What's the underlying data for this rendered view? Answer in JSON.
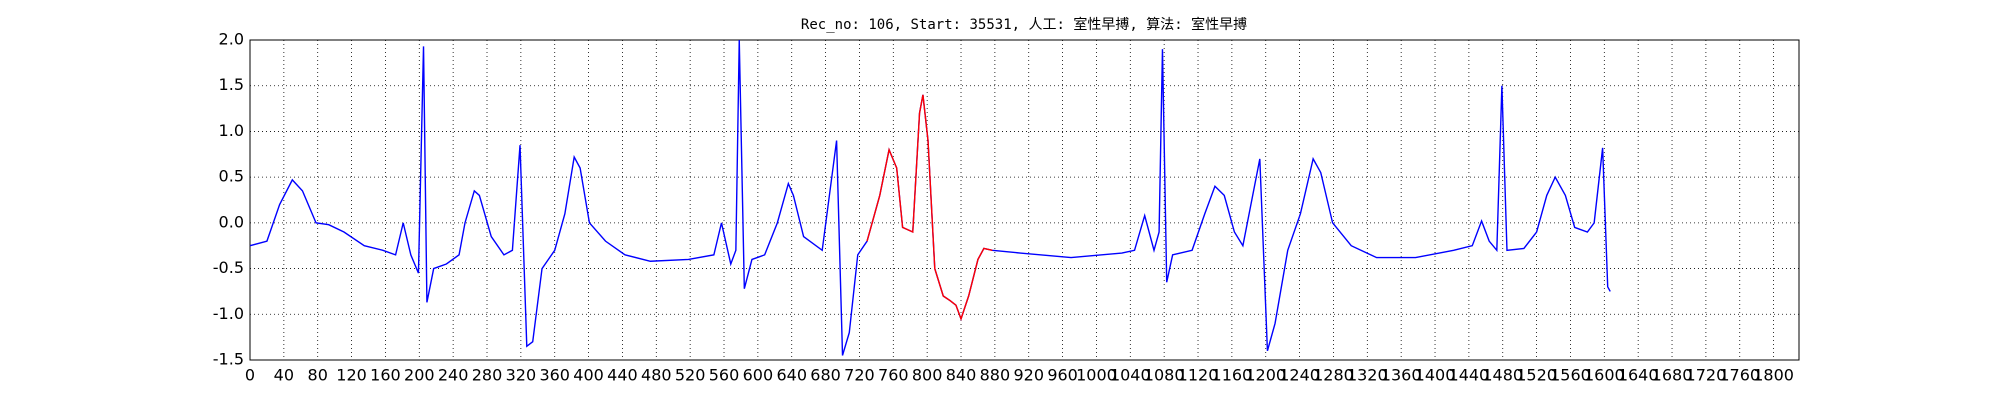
{
  "chart_data": {
    "type": "line",
    "title": "Rec_no: 106, Start: 35531, 人工: 室性早搏, 算法: 室性早搏",
    "series": [
      {
        "color": "#0000ff",
        "x": [
          0,
          20,
          35,
          50,
          62,
          78,
          93,
          111,
          135,
          157,
          172,
          181,
          190,
          199,
          205,
          209,
          217,
          232,
          247,
          254,
          265,
          271,
          285,
          300,
          310,
          319,
          327,
          334,
          345,
          360,
          372,
          383,
          390,
          401,
          420,
          443,
          473,
          518,
          548,
          557,
          568,
          574,
          578,
          584,
          593,
          608,
          623,
          636,
          642,
          654,
          676,
          693,
          700,
          708,
          718,
          729,
          744,
          755,
          764,
          771,
          783,
          791,
          795,
          801,
          809,
          819,
          827,
          834,
          840,
          849,
          860,
          867,
          877,
          910,
          970,
          1030,
          1045,
          1057,
          1068,
          1074,
          1078,
          1083,
          1090,
          1113,
          1128,
          1140,
          1151,
          1163,
          1173,
          1193,
          1202,
          1211,
          1226,
          1241,
          1256,
          1265,
          1279,
          1301,
          1331,
          1377,
          1422,
          1444,
          1455,
          1464,
          1473,
          1479,
          1485,
          1505,
          1520,
          1532,
          1542,
          1554,
          1565,
          1580,
          1588,
          1598,
          1604,
          1607
        ],
        "values": [
          -0.25,
          -0.2,
          0.2,
          0.47,
          0.35,
          0.0,
          -0.02,
          -0.1,
          -0.25,
          -0.3,
          -0.35,
          0.0,
          -0.35,
          -0.55,
          1.93,
          -0.87,
          -0.5,
          -0.45,
          -0.35,
          0.0,
          0.35,
          0.3,
          -0.15,
          -0.35,
          -0.3,
          0.85,
          -1.35,
          -1.3,
          -0.5,
          -0.3,
          0.1,
          0.72,
          0.6,
          0.0,
          -0.2,
          -0.35,
          -0.42,
          -0.4,
          -0.35,
          0.0,
          -0.45,
          -0.3,
          2.0,
          -0.72,
          -0.4,
          -0.35,
          0.0,
          0.43,
          0.3,
          -0.15,
          -0.3,
          0.9,
          -1.45,
          -1.2,
          -0.35,
          -0.2,
          0.3,
          0.8,
          0.6,
          -0.05,
          -0.1,
          1.2,
          1.4,
          0.9,
          -0.5,
          -0.8,
          -0.85,
          -0.9,
          -1.05,
          -0.8,
          -0.4,
          -0.28,
          -0.3,
          -0.33,
          -0.38,
          -0.33,
          -0.3,
          0.08,
          -0.3,
          -0.1,
          1.9,
          -0.65,
          -0.35,
          -0.3,
          0.1,
          0.4,
          0.3,
          -0.1,
          -0.25,
          0.7,
          -1.4,
          -1.1,
          -0.3,
          0.1,
          0.7,
          0.55,
          0.0,
          -0.25,
          -0.38,
          -0.38,
          -0.3,
          -0.25,
          0.02,
          -0.2,
          -0.3,
          1.5,
          -0.3,
          -0.28,
          -0.1,
          0.3,
          0.5,
          0.3,
          -0.05,
          -0.1,
          0.0,
          0.82,
          -0.7,
          -0.75
        ]
      },
      {
        "color": "#ff0000",
        "x": [
          729,
          744,
          755,
          764,
          771,
          783,
          791,
          795,
          801,
          809,
          819,
          827,
          834,
          840,
          849,
          860,
          867,
          877
        ],
        "values": [
          -0.2,
          0.3,
          0.8,
          0.6,
          -0.05,
          -0.1,
          1.2,
          1.4,
          0.9,
          -0.5,
          -0.8,
          -0.85,
          -0.9,
          -1.05,
          -0.8,
          -0.4,
          -0.28,
          -0.3
        ]
      }
    ],
    "xlim": [
      0,
      1830
    ],
    "xticks": [
      0,
      40,
      80,
      120,
      160,
      200,
      240,
      280,
      320,
      360,
      400,
      440,
      480,
      520,
      560,
      600,
      640,
      680,
      720,
      760,
      800,
      840,
      880,
      920,
      960,
      1000,
      1040,
      1080,
      1120,
      1160,
      1200,
      1240,
      1280,
      1320,
      1360,
      1400,
      1440,
      1480,
      1520,
      1560,
      1600,
      1640,
      1680,
      1720,
      1760,
      1800
    ],
    "ylim": [
      -1.5,
      2.0
    ],
    "yticks": [
      {
        "value": -1.5,
        "label": "-1.5"
      },
      {
        "value": -1.0,
        "label": "-1.0"
      },
      {
        "value": -0.5,
        "label": "-0.5"
      },
      {
        "value": 0,
        "label": "0.0"
      },
      {
        "value": 0.5,
        "label": "0.5"
      },
      {
        "value": 1.0,
        "label": "1.0"
      },
      {
        "value": 1.5,
        "label": "1.5"
      },
      {
        "value": 2.0,
        "label": "2.0"
      }
    ],
    "grid": true
  }
}
